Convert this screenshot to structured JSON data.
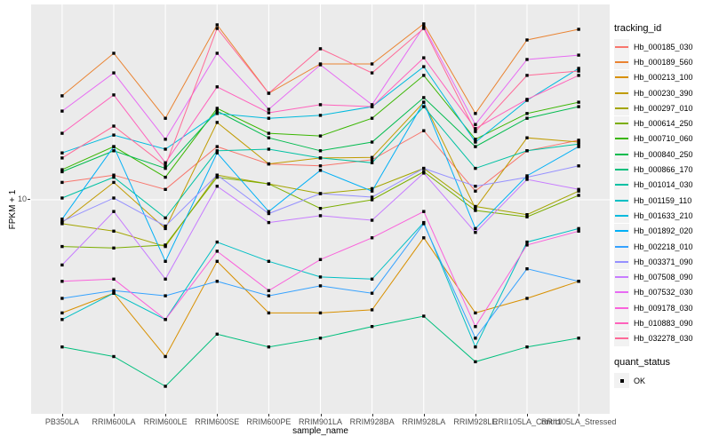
{
  "figure": {
    "background": "#FFFFFF",
    "panel_background": "#EBEBEB",
    "gridline_color": "#FFFFFF",
    "tick_color": "#333333",
    "tick_label_color": "#4D4D4D",
    "point_color": "#000000"
  },
  "axes": {
    "x": {
      "title": "sample_name"
    },
    "y": {
      "title": "FPKM + 1",
      "tick_labels": [
        "10"
      ],
      "tick_values": [
        10
      ],
      "scale": "log10"
    }
  },
  "legends": {
    "tracking": {
      "title": "tracking_id"
    },
    "quant": {
      "title": "quant_status",
      "items": [
        {
          "label": "OK",
          "marker": "black-square"
        }
      ]
    }
  },
  "chart_data": {
    "type": "line",
    "title": "",
    "xlabel": "sample_name",
    "ylabel": "FPKM + 1",
    "y_scale": "log10",
    "ylim": [
      1,
      85
    ],
    "y_ticks": [
      10
    ],
    "grid": true,
    "legend_position": "right",
    "point_marker": {
      "shape": "filled-square",
      "color": "#000000",
      "status_label": "OK"
    },
    "categories": [
      "PB350LA",
      "RRIM600LA",
      "RRIM600LE",
      "RRIM600SE",
      "RRIM600PE",
      "RRIM901LA",
      "RRIM928BA",
      "RRIM928LA",
      "RRIM928LE",
      "RRII105LA_Control",
      "RRII105LA_Stressed"
    ],
    "series": [
      {
        "name": "Hb_000185_030",
        "color": "#F8766D",
        "values": [
          12.1,
          13.1,
          11.2,
          17.9,
          14.8,
          14.5,
          15.5,
          21.3,
          11.0,
          17.1,
          19.2
        ]
      },
      {
        "name": "Hb_000189_560",
        "color": "#EA8331",
        "values": [
          31.2,
          49.7,
          24.4,
          67.8,
          32.1,
          44.2,
          44.2,
          68.5,
          25.7,
          57.5,
          64.6
        ]
      },
      {
        "name": "Hb_000213_100",
        "color": "#D89000",
        "values": [
          2.9,
          3.6,
          1.8,
          5.1,
          2.9,
          2.9,
          3.0,
          6.6,
          2.9,
          3.4,
          4.1
        ]
      },
      {
        "name": "Hb_000230_390",
        "color": "#C09B00",
        "values": [
          7.8,
          12.1,
          7.3,
          23.3,
          14.8,
          15.8,
          15.9,
          29.1,
          9.1,
          19.7,
          18.8
        ]
      },
      {
        "name": "Hb_000297_010",
        "color": "#A3A500",
        "values": [
          7.7,
          7.1,
          6.0,
          13.1,
          11.9,
          10.7,
          11.3,
          14.1,
          9.3,
          8.5,
          11.0
        ]
      },
      {
        "name": "Hb_000614_250",
        "color": "#7CAE00",
        "values": [
          6.0,
          5.9,
          6.1,
          12.8,
          11.9,
          9.1,
          10.0,
          13.6,
          8.9,
          8.3,
          10.5
        ]
      },
      {
        "name": "Hb_000710_060",
        "color": "#39B600",
        "values": [
          13.9,
          17.9,
          12.8,
          27.2,
          20.7,
          20.1,
          24.4,
          39.0,
          19.4,
          25.7,
          29.1
        ]
      },
      {
        "name": "Hb_000840_250",
        "color": "#00BB4E",
        "values": [
          13.6,
          17.1,
          14.1,
          26.4,
          19.7,
          17.1,
          18.8,
          30.6,
          17.9,
          24.4,
          27.7
        ]
      },
      {
        "name": "Hb_000866_170",
        "color": "#00BF7D",
        "values": [
          2.0,
          1.8,
          1.3,
          2.3,
          2.0,
          2.2,
          2.5,
          2.8,
          1.7,
          2.0,
          2.2
        ]
      },
      {
        "name": "Hb_001014_030",
        "color": "#00C1A3",
        "values": [
          10.2,
          12.8,
          8.2,
          17.1,
          17.4,
          15.8,
          15.0,
          27.7,
          14.1,
          17.1,
          18.4
        ]
      },
      {
        "name": "Hb_001159_110",
        "color": "#00BFC4",
        "values": [
          2.7,
          3.6,
          2.7,
          6.3,
          5.1,
          4.3,
          4.2,
          7.8,
          2.0,
          6.3,
          7.3
        ]
      },
      {
        "name": "Hb_001633_210",
        "color": "#00BADE",
        "values": [
          16.7,
          20.3,
          17.4,
          25.7,
          24.4,
          25.2,
          27.7,
          42.9,
          18.8,
          29.7,
          42.1
        ]
      },
      {
        "name": "Hb_001892_020",
        "color": "#00B0F6",
        "values": [
          8.1,
          17.9,
          5.1,
          16.7,
          8.8,
          13.8,
          11.0,
          29.1,
          7.3,
          13.0,
          17.9
        ]
      },
      {
        "name": "Hb_002218_010",
        "color": "#35A2FF",
        "values": [
          3.4,
          3.7,
          3.5,
          4.1,
          3.5,
          3.9,
          3.6,
          7.7,
          2.2,
          4.7,
          4.1
        ]
      },
      {
        "name": "Hb_003371_090",
        "color": "#9590FF",
        "values": [
          7.9,
          10.2,
          7.5,
          13.1,
          8.6,
          10.7,
          10.3,
          14.1,
          11.6,
          12.8,
          14.5
        ]
      },
      {
        "name": "Hb_007508_090",
        "color": "#C77CFF",
        "values": [
          4.9,
          8.8,
          4.2,
          11.6,
          7.8,
          8.4,
          8.0,
          13.4,
          7.0,
          12.5,
          11.2
        ]
      },
      {
        "name": "Hb_007532_030",
        "color": "#E76BF3",
        "values": [
          26.4,
          40.1,
          19.4,
          49.7,
          26.9,
          43.8,
          28.3,
          66.5,
          22.8,
          46.4,
          48.7
        ]
      },
      {
        "name": "Hb_009178_030",
        "color": "#FA62DB",
        "values": [
          4.1,
          4.2,
          2.7,
          5.7,
          3.7,
          5.2,
          6.6,
          8.8,
          2.5,
          6.1,
          7.1
        ]
      },
      {
        "name": "Hb_010883_090",
        "color": "#FF62BC",
        "values": [
          20.7,
          31.5,
          15.0,
          34.4,
          25.9,
          28.3,
          27.7,
          47.3,
          21.8,
          30.0,
          39.0
        ]
      },
      {
        "name": "Hb_032278_030",
        "color": "#FF6A98",
        "values": [
          15.8,
          22.4,
          14.5,
          65.2,
          32.1,
          52.2,
          40.1,
          65.2,
          21.1,
          39.0,
          40.9
        ]
      }
    ]
  }
}
